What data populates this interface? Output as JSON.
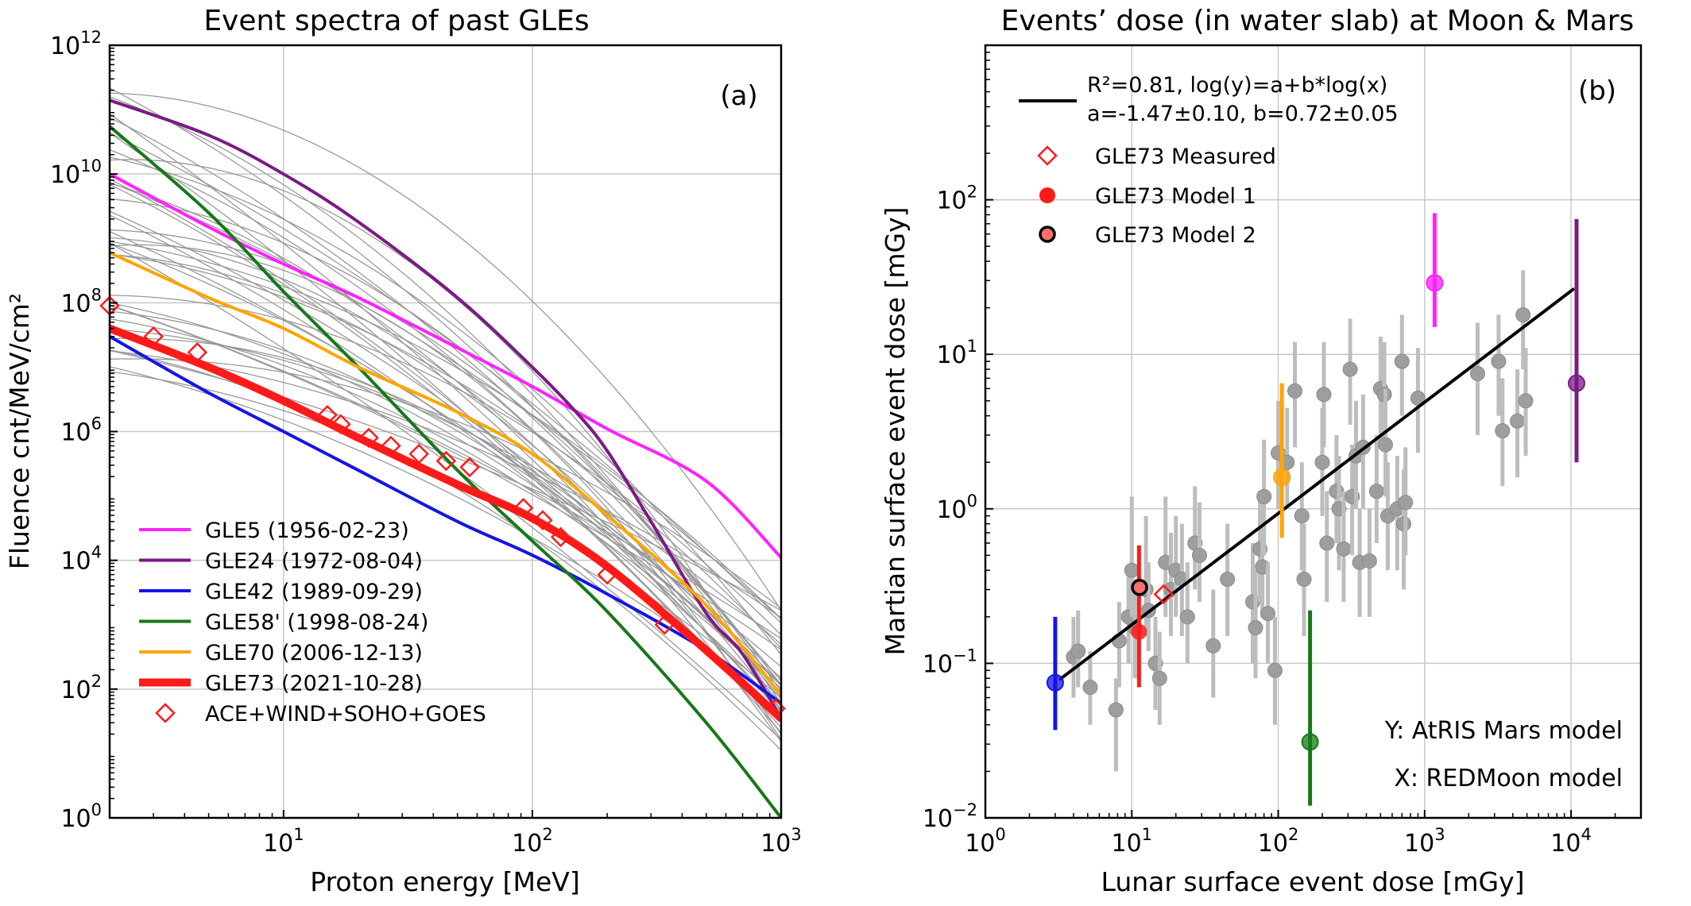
{
  "chart_data": [
    {
      "id": "a",
      "type": "line",
      "title": "Event spectra of past GLEs",
      "panel_label": "(a)",
      "xlabel": "Proton energy [MeV]",
      "ylabel": "Fluence cnt/MeV/cm²",
      "xscale": "log",
      "yscale": "log",
      "xlim": [
        2,
        1000
      ],
      "ylim": [
        1,
        1000000000000.0
      ],
      "grid": true,
      "x_ticks": [
        {
          "value": 10,
          "base": "10",
          "exp": "1"
        },
        {
          "value": 100,
          "base": "10",
          "exp": "2"
        },
        {
          "value": 1000,
          "base": "10",
          "exp": "3"
        }
      ],
      "y_ticks": [
        {
          "value": 1,
          "base": "10",
          "exp": "0"
        },
        {
          "value": 100,
          "base": "10",
          "exp": "2"
        },
        {
          "value": 10000,
          "base": "10",
          "exp": "4"
        },
        {
          "value": 1000000,
          "base": "10",
          "exp": "6"
        },
        {
          "value": 100000000,
          "base": "10",
          "exp": "8"
        },
        {
          "value": 10000000000,
          "base": "10",
          "exp": "10"
        },
        {
          "value": 1000000000000,
          "base": "10",
          "exp": "12"
        }
      ],
      "legend_position": "bottom-left",
      "background_curves": {
        "color": "#999999",
        "count": 40,
        "description": "other past GLE event spectra (unlabelled)",
        "start_range_log10": [
          6.9,
          11.4
        ],
        "end_range_log10": [
          1.0,
          3.4
        ]
      },
      "series": [
        {
          "name": "GLE5 (1956-02-23)",
          "color": "#ff22ff",
          "width": 4,
          "x": [
            2,
            5,
            10,
            20,
            50,
            100,
            200,
            500,
            1000
          ],
          "y": [
            10000000000.0,
            1500000000.0,
            400000000.0,
            120000000.0,
            20000000.0,
            5000000.0,
            1100000.0,
            170000.0,
            11000.0
          ]
        },
        {
          "name": "GLE24 (1972-08-04)",
          "color": "#7b1a86",
          "width": 4,
          "x": [
            2,
            5,
            10,
            20,
            50,
            100,
            150,
            200,
            300,
            500,
            700,
            1000
          ],
          "y": [
            140000000000.0,
            40000000000.0,
            10000000000.0,
            1800000000.0,
            120000000.0,
            10000000.0,
            2000000.0,
            500000.0,
            40000.0,
            1500.0,
            350.0,
            35.0
          ]
        },
        {
          "name": "GLE42 (1989-09-29)",
          "color": "#1414e6",
          "width": 4,
          "x": [
            2,
            5,
            10,
            20,
            50,
            100,
            200,
            500,
            1000
          ],
          "y": [
            30000000.0,
            4000000.0,
            1000000.0,
            250000.0,
            40000.0,
            12000.0,
            3000.0,
            400.0,
            60.0
          ]
        },
        {
          "name": "GLE58' (1998-08-24)",
          "color": "#167916",
          "width": 4,
          "x": [
            2,
            5,
            10,
            20,
            50,
            100,
            200,
            500,
            1000
          ],
          "y": [
            55000000000.0,
            2500000000.0,
            150000000.0,
            10000000.0,
            250000.0,
            20000.0,
            1600.0,
            30.0,
            1.0
          ]
        },
        {
          "name": "GLE70 (2006-12-13)",
          "color": "#ffa500",
          "width": 4,
          "x": [
            2,
            5,
            10,
            20,
            50,
            100,
            200,
            500,
            1000
          ],
          "y": [
            600000000.0,
            120000000.0,
            40000000.0,
            10000000.0,
            2000000.0,
            450000.0,
            50000.0,
            2000.0,
            80.0
          ]
        },
        {
          "name": "GLE73 (2021-10-28)",
          "color": "#ff1a1a",
          "width": 10,
          "x": [
            2,
            5,
            10,
            20,
            50,
            100,
            200,
            500,
            1000
          ],
          "y": [
            40000000.0,
            10000000.0,
            3000000.0,
            800000.0,
            150000.0,
            45000.0,
            8000.0,
            400.0,
            35.0
          ]
        }
      ],
      "measured": {
        "name": "ACE+WIND+SOHO+GOES",
        "marker": "open-diamond",
        "color": "#ff1a1a",
        "x": [
          2,
          3,
          4.5,
          15,
          17,
          22,
          27,
          35,
          45,
          56,
          92,
          110,
          130,
          200,
          340,
          950
        ],
        "y": [
          90000000.0,
          30000000.0,
          17000000.0,
          1800000.0,
          1300000.0,
          800000.0,
          600000.0,
          450000.0,
          350000.0,
          280000.0,
          65000.0,
          42000.0,
          23000.0,
          6000.0,
          1000.0,
          50.0
        ]
      }
    },
    {
      "id": "b",
      "type": "scatter",
      "title": "Events’ dose (in water slab) at Moon & Mars",
      "panel_label": "(b)",
      "xlabel": "Lunar surface event dose [mGy]",
      "ylabel": "Martian surface event dose [mGy]",
      "xscale": "log",
      "yscale": "log",
      "xlim": [
        1,
        30000
      ],
      "ylim": [
        0.01,
        1000
      ],
      "grid": true,
      "x_ticks": [
        {
          "value": 1,
          "base": "10",
          "exp": "0"
        },
        {
          "value": 10,
          "base": "10",
          "exp": "1"
        },
        {
          "value": 100,
          "base": "10",
          "exp": "2"
        },
        {
          "value": 1000,
          "base": "10",
          "exp": "3"
        },
        {
          "value": 10000,
          "base": "10",
          "exp": "4"
        }
      ],
      "y_ticks": [
        {
          "value": 0.01,
          "base": "10",
          "exp": "−2"
        },
        {
          "value": 0.1,
          "base": "10",
          "exp": "−1"
        },
        {
          "value": 1,
          "base": "10",
          "exp": "0"
        },
        {
          "value": 10,
          "base": "10",
          "exp": "1"
        },
        {
          "value": 100,
          "base": "10",
          "exp": "2"
        }
      ],
      "fit": {
        "label_line1": "R²=0.81, log(y)=a+b*log(x)",
        "label_line2": "a=-1.47±0.10, b=0.72±0.05",
        "a": -1.47,
        "b": 0.72,
        "x_range": [
          3.2,
          10500
        ],
        "color": "#000000"
      },
      "legend": [
        {
          "label": "GLE73 Measured",
          "marker": "open-diamond",
          "color": "#ff1a1a"
        },
        {
          "label": "GLE73 Model 1",
          "marker": "filled-circle",
          "color": "#ff1a1a"
        },
        {
          "label": "GLE73 Model 2",
          "marker": "ringed-circle",
          "color": "#ff6f6f"
        }
      ],
      "annotations": [
        "Y: AtRIS Mars model",
        "X: REDMoon model"
      ],
      "gray_points": {
        "color": "#999999",
        "points": [
          [
            4,
            0.11,
            0.06,
            0.2
          ],
          [
            4.3,
            0.12,
            0.07,
            0.22
          ],
          [
            5.2,
            0.07,
            0.04,
            0.12
          ],
          [
            7.8,
            0.05,
            0.02,
            0.08
          ],
          [
            8.2,
            0.14,
            0.07,
            0.25
          ],
          [
            9.5,
            0.2,
            0.1,
            0.4
          ],
          [
            10,
            0.4,
            0.2,
            1.2
          ],
          [
            10.5,
            0.17,
            0.08,
            0.35
          ],
          [
            12.5,
            0.3,
            0.15,
            0.9
          ],
          [
            13,
            0.22,
            0.12,
            0.45
          ],
          [
            14.5,
            0.1,
            0.05,
            0.2
          ],
          [
            15.5,
            0.08,
            0.04,
            0.16
          ],
          [
            17,
            0.45,
            0.2,
            1.2
          ],
          [
            18.5,
            0.3,
            0.15,
            0.7
          ],
          [
            20,
            0.4,
            0.2,
            0.9
          ],
          [
            22,
            0.35,
            0.15,
            0.8
          ],
          [
            24,
            0.2,
            0.1,
            0.45
          ],
          [
            27,
            0.6,
            0.3,
            1.4
          ],
          [
            29,
            0.5,
            0.25,
            1.1
          ],
          [
            36,
            0.13,
            0.06,
            0.3
          ],
          [
            45,
            0.35,
            0.15,
            0.8
          ],
          [
            67,
            0.25,
            0.1,
            0.6
          ],
          [
            70,
            0.17,
            0.08,
            0.4
          ],
          [
            75,
            0.55,
            0.25,
            1.3
          ],
          [
            78,
            0.42,
            0.2,
            1
          ],
          [
            80,
            1.2,
            0.5,
            2.8
          ],
          [
            85,
            0.21,
            0.1,
            0.45
          ],
          [
            95,
            0.09,
            0.04,
            0.2
          ],
          [
            100,
            2.3,
            1,
            5
          ],
          [
            115,
            2,
            1,
            4.5
          ],
          [
            130,
            5.8,
            2.5,
            12
          ],
          [
            145,
            0.9,
            0.4,
            2
          ],
          [
            150,
            0.35,
            0.15,
            0.8
          ],
          [
            200,
            2,
            0.9,
            4.5
          ],
          [
            205,
            5.5,
            2.5,
            12
          ],
          [
            215,
            0.6,
            0.25,
            1.3
          ],
          [
            250,
            1.3,
            0.6,
            3
          ],
          [
            260,
            1,
            0.4,
            2.2
          ],
          [
            280,
            0.55,
            0.25,
            1.3
          ],
          [
            310,
            8,
            3.5,
            17
          ],
          [
            320,
            1.2,
            0.5,
            2.6
          ],
          [
            340,
            2.2,
            1,
            5
          ],
          [
            360,
            0.45,
            0.2,
            1
          ],
          [
            380,
            2.5,
            1,
            5.5
          ],
          [
            420,
            0.46,
            0.2,
            1
          ],
          [
            470,
            1.3,
            0.6,
            3
          ],
          [
            500,
            6,
            2.5,
            13
          ],
          [
            530,
            5.5,
            2.5,
            12
          ],
          [
            540,
            2.6,
            1.2,
            6
          ],
          [
            560,
            0.9,
            0.4,
            2
          ],
          [
            650,
            1,
            0.4,
            2.2
          ],
          [
            700,
            9,
            4,
            18
          ],
          [
            720,
            0.8,
            0.3,
            1.8
          ],
          [
            740,
            1.1,
            0.5,
            2.5
          ],
          [
            900,
            5.2,
            2.3,
            11
          ],
          [
            2300,
            7.5,
            3,
            16
          ],
          [
            3200,
            9,
            4,
            18
          ],
          [
            3400,
            3.2,
            1.4,
            7
          ],
          [
            4300,
            3.7,
            1.6,
            8
          ],
          [
            4900,
            5,
            2.2,
            11
          ],
          [
            4700,
            18,
            8,
            35
          ]
        ]
      },
      "colored_points": [
        {
          "name": "GLE5",
          "color": "#ff22ff",
          "x": 1170,
          "y": 29,
          "ylo": 15,
          "yhi": 82
        },
        {
          "name": "GLE24",
          "color": "#7b1a86",
          "x": 10900,
          "y": 6.5,
          "ylo": 2.0,
          "yhi": 75
        },
        {
          "name": "GLE42",
          "color": "#1414e6",
          "x": 3.0,
          "y": 0.075,
          "ylo": 0.037,
          "yhi": 0.2
        },
        {
          "name": "GLE58'",
          "color": "#167916",
          "x": 165,
          "y": 0.031,
          "ylo": 0.012,
          "yhi": 0.22
        },
        {
          "name": "GLE70",
          "color": "#ffa500",
          "x": 106,
          "y": 1.6,
          "ylo": 0.65,
          "yhi": 6.5
        }
      ],
      "gle73": {
        "measured": {
          "x": 16.5,
          "y": 0.28
        },
        "model1": {
          "x": 11.2,
          "y": 0.16,
          "ylo": 0.07,
          "yhi": 0.58
        },
        "model2": {
          "x": 11.3,
          "y": 0.31
        }
      }
    }
  ]
}
